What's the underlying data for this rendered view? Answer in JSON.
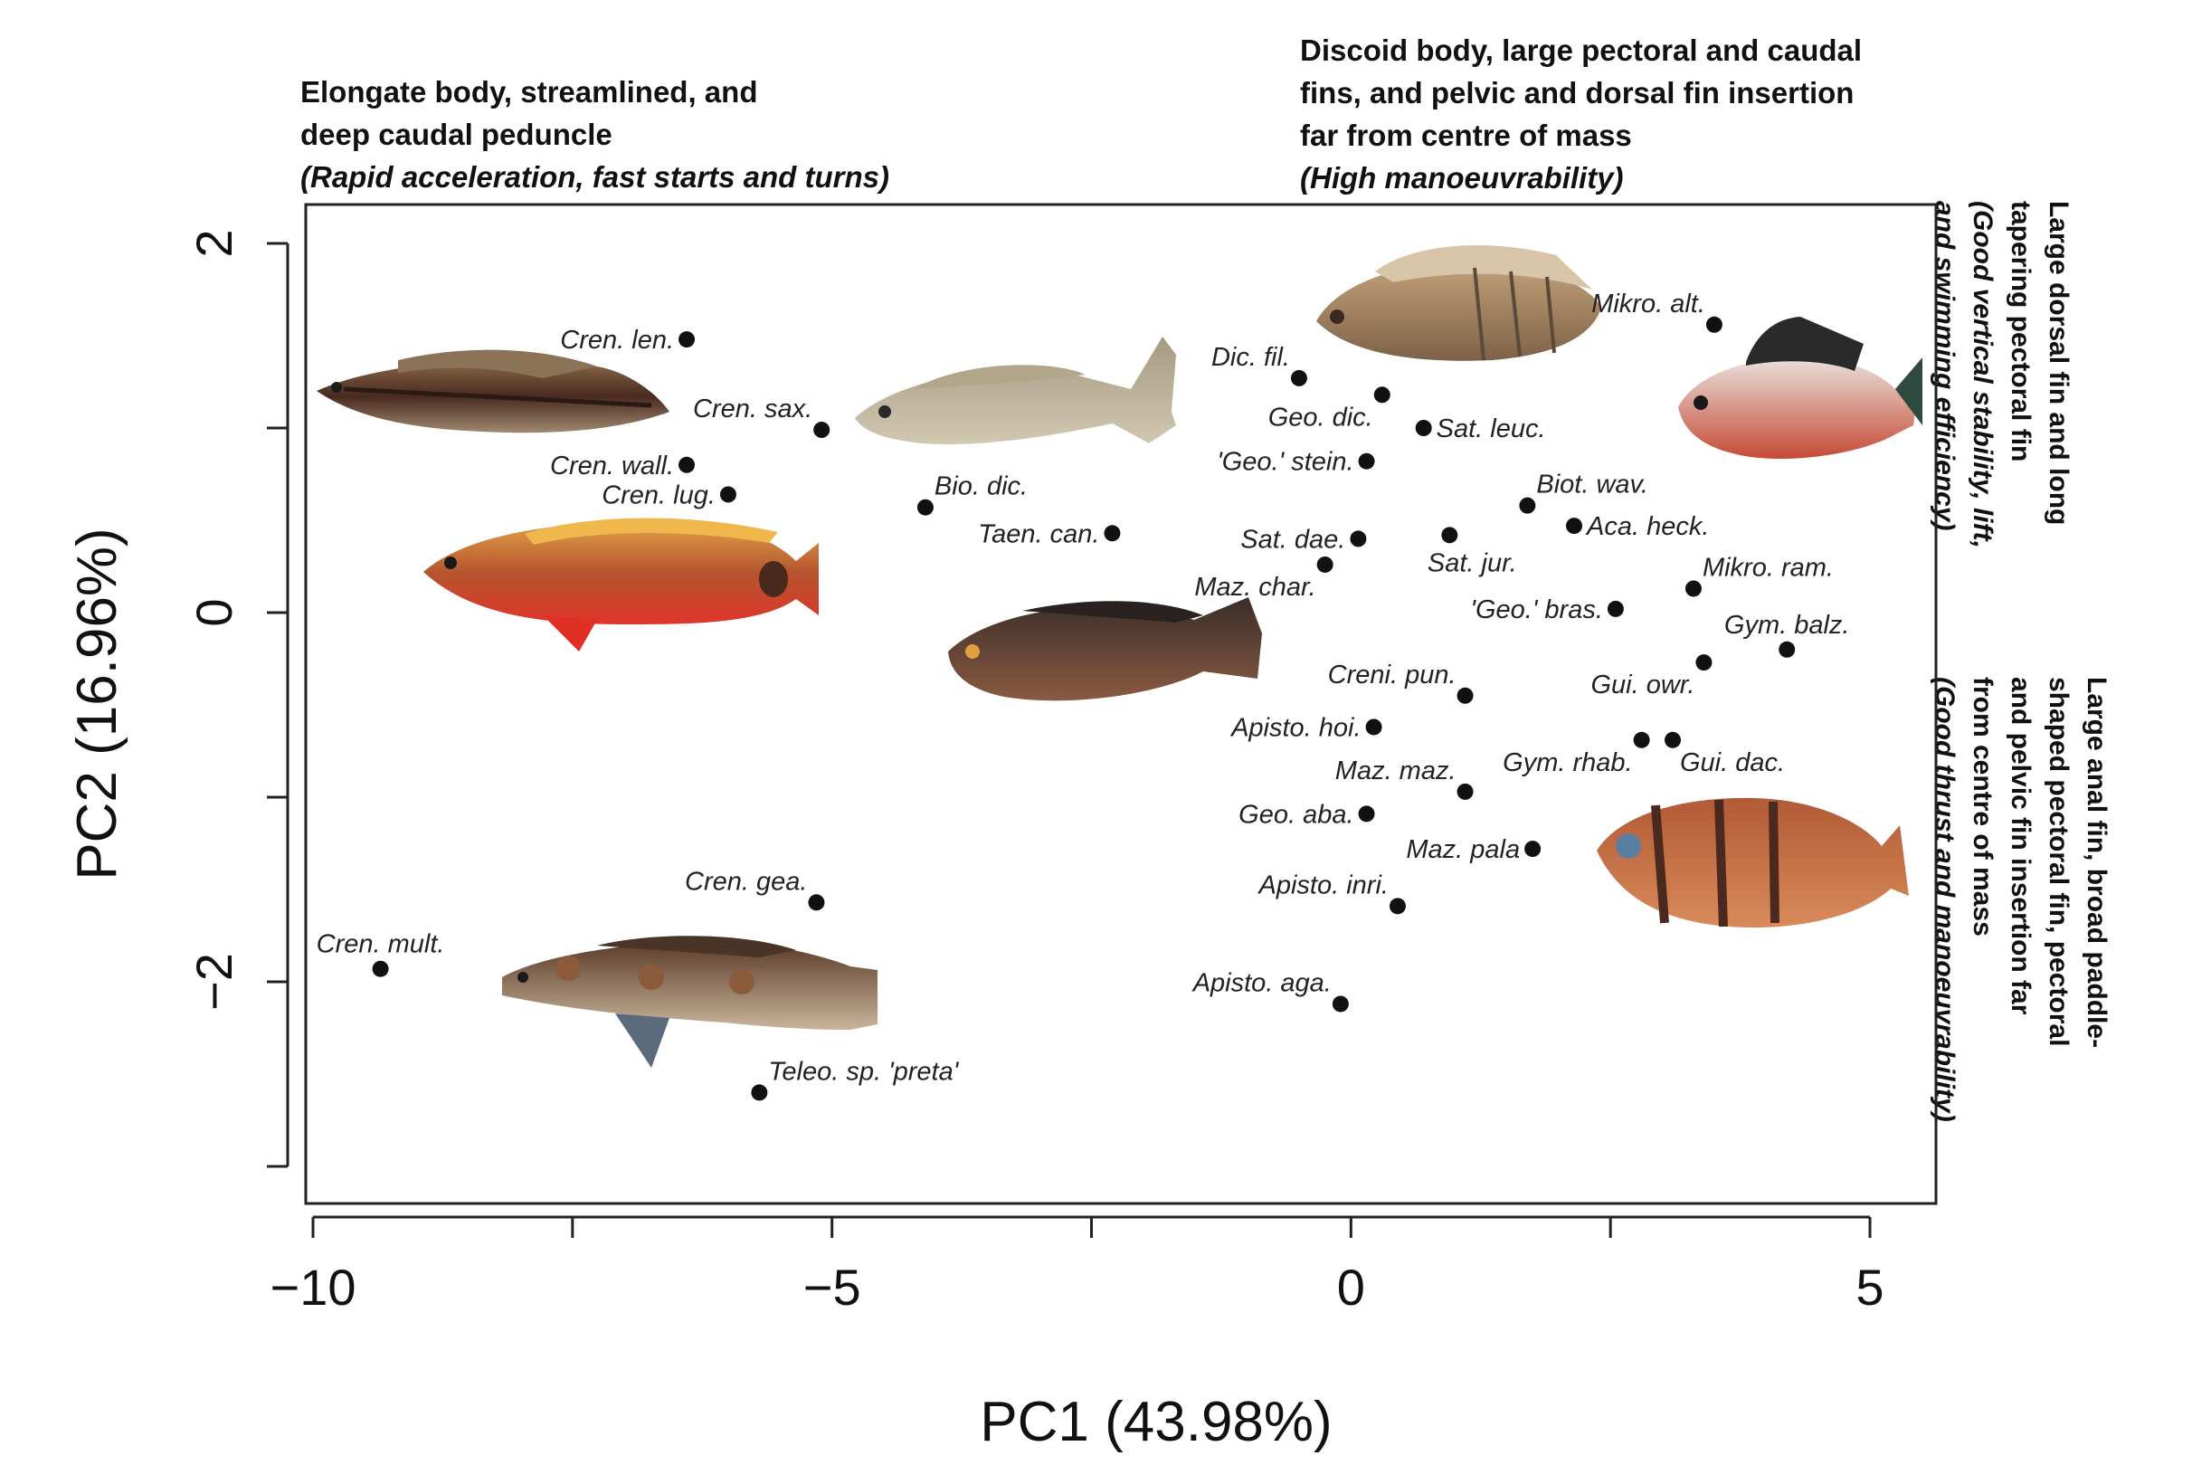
{
  "chart_data": {
    "type": "scatter",
    "title": "",
    "xlabel": "PC1 (43.98%)",
    "ylabel": "PC2 (16.96%)",
    "xlim": [
      -10,
      5.5
    ],
    "ylim": [
      -3.2,
      2.2
    ],
    "xticks": [
      -10,
      -7.5,
      -5,
      -2.5,
      0,
      2.5,
      5
    ],
    "xtick_labels": [
      "−10",
      "",
      "−5",
      "",
      "0",
      "",
      "5"
    ],
    "yticks": [
      -3,
      -2,
      -1,
      0,
      1,
      2
    ],
    "ytick_labels": [
      "",
      "−2",
      "",
      "0",
      "",
      "2"
    ],
    "grid": false,
    "points": [
      {
        "label": "Cren. len.",
        "x": -6.4,
        "y": 1.48,
        "pos": "left"
      },
      {
        "label": "Cren. sax.",
        "x": -5.1,
        "y": 0.99,
        "pos": "left-up"
      },
      {
        "label": "Cren. wall.",
        "x": -6.4,
        "y": 0.8,
        "pos": "left"
      },
      {
        "label": "Cren. lug.",
        "x": -6.0,
        "y": 0.64,
        "pos": "left"
      },
      {
        "label": "Bio. dic.",
        "x": -4.1,
        "y": 0.57,
        "pos": "right-up"
      },
      {
        "label": "Taen. can.",
        "x": -2.3,
        "y": 0.43,
        "pos": "left"
      },
      {
        "label": "Dic. fil.",
        "x": -0.5,
        "y": 1.27,
        "pos": "left-up"
      },
      {
        "label": "Geo. dic.",
        "x": 0.3,
        "y": 1.18,
        "pos": "left-down"
      },
      {
        "label": "Sat. leuc.",
        "x": 0.7,
        "y": 1.0,
        "pos": "right"
      },
      {
        "label": "'Geo.' stein.",
        "x": 0.15,
        "y": 0.82,
        "pos": "left"
      },
      {
        "label": "Mikro. alt.",
        "x": 3.5,
        "y": 1.56,
        "pos": "left-up"
      },
      {
        "label": "Biot. wav.",
        "x": 1.7,
        "y": 0.58,
        "pos": "right-up"
      },
      {
        "label": "Aca. heck.",
        "x": 2.15,
        "y": 0.47,
        "pos": "right"
      },
      {
        "label": "Sat. dae.",
        "x": 0.07,
        "y": 0.4,
        "pos": "left"
      },
      {
        "label": "Sat. jur.",
        "x": 0.95,
        "y": 0.42,
        "pos": "below"
      },
      {
        "label": "Maz. char.",
        "x": -0.25,
        "y": 0.26,
        "pos": "left-down"
      },
      {
        "label": "Mikro. ram.",
        "x": 3.3,
        "y": 0.13,
        "pos": "right-up"
      },
      {
        "label": "'Geo.' bras.",
        "x": 2.55,
        "y": 0.02,
        "pos": "left"
      },
      {
        "label": "Gym. balz.",
        "x": 4.2,
        "y": -0.2,
        "pos": "above"
      },
      {
        "label": "Creni. pun.",
        "x": 1.1,
        "y": -0.45,
        "pos": "left-up"
      },
      {
        "label": "Gui. owr.",
        "x": 3.4,
        "y": -0.27,
        "pos": "left-down"
      },
      {
        "label": "Apisto. hoi.",
        "x": 0.22,
        "y": -0.62,
        "pos": "left"
      },
      {
        "label": "Gym. rhab.",
        "x": 2.8,
        "y": -0.69,
        "pos": "left-down"
      },
      {
        "label": "Gui. dac.",
        "x": 3.1,
        "y": -0.69,
        "pos": "right-down"
      },
      {
        "label": "Maz. maz.",
        "x": 1.1,
        "y": -0.97,
        "pos": "left-up"
      },
      {
        "label": "Geo. aba.",
        "x": 0.15,
        "y": -1.09,
        "pos": "left"
      },
      {
        "label": "Maz. pala",
        "x": 1.75,
        "y": -1.28,
        "pos": "left"
      },
      {
        "label": "Apisto. inri.",
        "x": 0.45,
        "y": -1.59,
        "pos": "left-up"
      },
      {
        "label": "Apisto. aga.",
        "x": -0.1,
        "y": -2.12,
        "pos": "left-up"
      },
      {
        "label": "Cren. gea.",
        "x": -5.15,
        "y": -1.57,
        "pos": "left-up"
      },
      {
        "label": "Cren. mult.",
        "x": -9.35,
        "y": -1.93,
        "pos": "above"
      },
      {
        "label": "Teleo. sp. 'preta'",
        "x": -5.7,
        "y": -2.6,
        "pos": "right-up"
      }
    ]
  },
  "annotations": {
    "left_top": {
      "line1": "Elongate body, streamlined, and",
      "line2": "deep caudal peduncle",
      "line3": "(Rapid acceleration, fast starts and turns)"
    },
    "center_top": {
      "line1": "Discoid body, large pectoral and caudal",
      "line2": "fins, and pelvic and dorsal fin insertion",
      "line3": "far from centre of mass",
      "line4": "(High manoeuvrability)"
    },
    "right_upper": {
      "line1": "Large dorsal fin and long",
      "line2": "tapering pectoral fin",
      "line3": "(Good vertical stability, lift,",
      "line4": "and swimming efficiency)"
    },
    "right_lower": {
      "line1": "Large anal fin, broad paddle-",
      "line2": "shaped pectoral fin, pectoral",
      "line3": "and pelvic fin insertion far",
      "line4": "from centre of mass",
      "line5": "(Good thrust and manoeuvrability)"
    }
  },
  "fish_images": [
    {
      "name": "elongate-striped-fish",
      "color": "#5a3a2a"
    },
    {
      "name": "pale-fish",
      "color": "#b7ad92"
    },
    {
      "name": "red-orange-fish",
      "color": "#c9502e"
    },
    {
      "name": "brown-cichlid",
      "color": "#5b4638"
    },
    {
      "name": "spotted-elongate-fish",
      "color": "#6a4a34"
    },
    {
      "name": "discoid-striped-fish",
      "color": "#a9865c"
    },
    {
      "name": "tall-fin-fish",
      "color": "#c9503a"
    },
    {
      "name": "orange-discus-fish",
      "color": "#c4683f"
    }
  ]
}
